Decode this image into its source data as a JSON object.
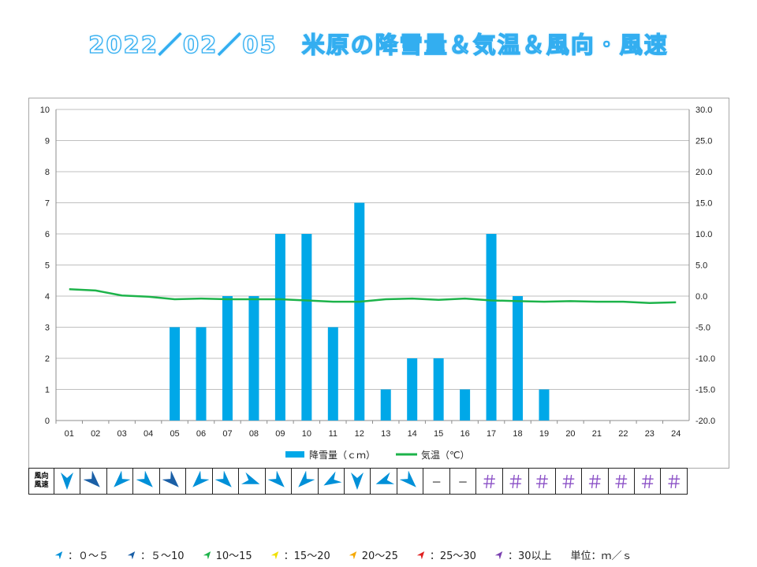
{
  "title": "2022／02／05　米原の降雪量＆気温＆風向・風速",
  "chart_data": {
    "type": "bar+line",
    "categories": [
      "01",
      "02",
      "03",
      "04",
      "05",
      "06",
      "07",
      "08",
      "09",
      "10",
      "11",
      "12",
      "13",
      "14",
      "15",
      "16",
      "17",
      "18",
      "19",
      "20",
      "21",
      "22",
      "23",
      "24"
    ],
    "series": [
      {
        "name": "降雪量（ｃｍ）",
        "type": "bar",
        "axis": "left",
        "color": "#00a8e8",
        "values": [
          0,
          0,
          0,
          0,
          3,
          3,
          4,
          4,
          6,
          6,
          3,
          7,
          1,
          2,
          2,
          1,
          6,
          4,
          1,
          0,
          0,
          0,
          0,
          0
        ]
      },
      {
        "name": "気温（℃）",
        "type": "line",
        "axis": "right",
        "color": "#1db34a",
        "values": [
          1.1,
          0.9,
          0.1,
          -0.1,
          -0.5,
          -0.4,
          -0.5,
          -0.5,
          -0.5,
          -0.7,
          -0.9,
          -0.9,
          -0.5,
          -0.4,
          -0.6,
          -0.4,
          -0.7,
          -0.8,
          -0.9,
          -0.8,
          -0.9,
          -0.9,
          -1.1,
          -1.0
        ]
      }
    ],
    "y_left": {
      "ylim": [
        0,
        10
      ],
      "ticks": [
        "0",
        "1",
        "2",
        "3",
        "4",
        "5",
        "6",
        "7",
        "8",
        "9",
        "10"
      ]
    },
    "y_right": {
      "ylim": [
        -20,
        30
      ],
      "ticks": [
        "-20.0",
        "-15.0",
        "-10.0",
        "-5.0",
        "0.0",
        "5.0",
        "10.0",
        "15.0",
        "20.0",
        "25.0",
        "30.0"
      ]
    },
    "grid": true,
    "legend_position": "bottom"
  },
  "wind": {
    "header": [
      "風向",
      "風速"
    ],
    "cells": [
      {
        "kind": "arrow",
        "dir": 180,
        "color": "#0090d8"
      },
      {
        "kind": "arrow",
        "dir": 135,
        "color": "#1a5fa6"
      },
      {
        "kind": "arrow",
        "dir": 225,
        "color": "#0090d8"
      },
      {
        "kind": "arrow",
        "dir": 135,
        "color": "#0090d8"
      },
      {
        "kind": "arrow",
        "dir": 135,
        "color": "#1a5fa6"
      },
      {
        "kind": "arrow",
        "dir": 225,
        "color": "#0090d8"
      },
      {
        "kind": "arrow",
        "dir": 135,
        "color": "#0090d8"
      },
      {
        "kind": "arrow",
        "dir": 110,
        "color": "#0090d8"
      },
      {
        "kind": "arrow",
        "dir": 135,
        "color": "#0090d8"
      },
      {
        "kind": "arrow",
        "dir": 225,
        "color": "#0090d8"
      },
      {
        "kind": "arrow",
        "dir": 240,
        "color": "#0090d8"
      },
      {
        "kind": "arrow",
        "dir": 180,
        "color": "#0090d8"
      },
      {
        "kind": "arrow",
        "dir": 250,
        "color": "#0090d8"
      },
      {
        "kind": "arrow",
        "dir": 135,
        "color": "#0090d8"
      },
      {
        "kind": "text",
        "text": "－"
      },
      {
        "kind": "text",
        "text": "－"
      },
      {
        "kind": "text",
        "text": "＃"
      },
      {
        "kind": "text",
        "text": "＃"
      },
      {
        "kind": "text",
        "text": "＃"
      },
      {
        "kind": "text",
        "text": "＃"
      },
      {
        "kind": "text",
        "text": "＃"
      },
      {
        "kind": "text",
        "text": "＃"
      },
      {
        "kind": "text",
        "text": "＃"
      },
      {
        "kind": "text",
        "text": "＃"
      }
    ]
  },
  "speed_legend": [
    {
      "label": "：０～５",
      "color": "#0090d8"
    },
    {
      "label": "：５～10",
      "color": "#1a5fa6"
    },
    {
      "label": "10～15",
      "color": "#1db34a"
    },
    {
      "label": "：15～20",
      "color": "#f0e000"
    },
    {
      "label": "20～25",
      "color": "#f5a800"
    },
    {
      "label": "：25～30",
      "color": "#e02020"
    },
    {
      "label": "：30以上",
      "color": "#7a3fb0"
    }
  ],
  "unit_label": "単位：ｍ／ｓ"
}
